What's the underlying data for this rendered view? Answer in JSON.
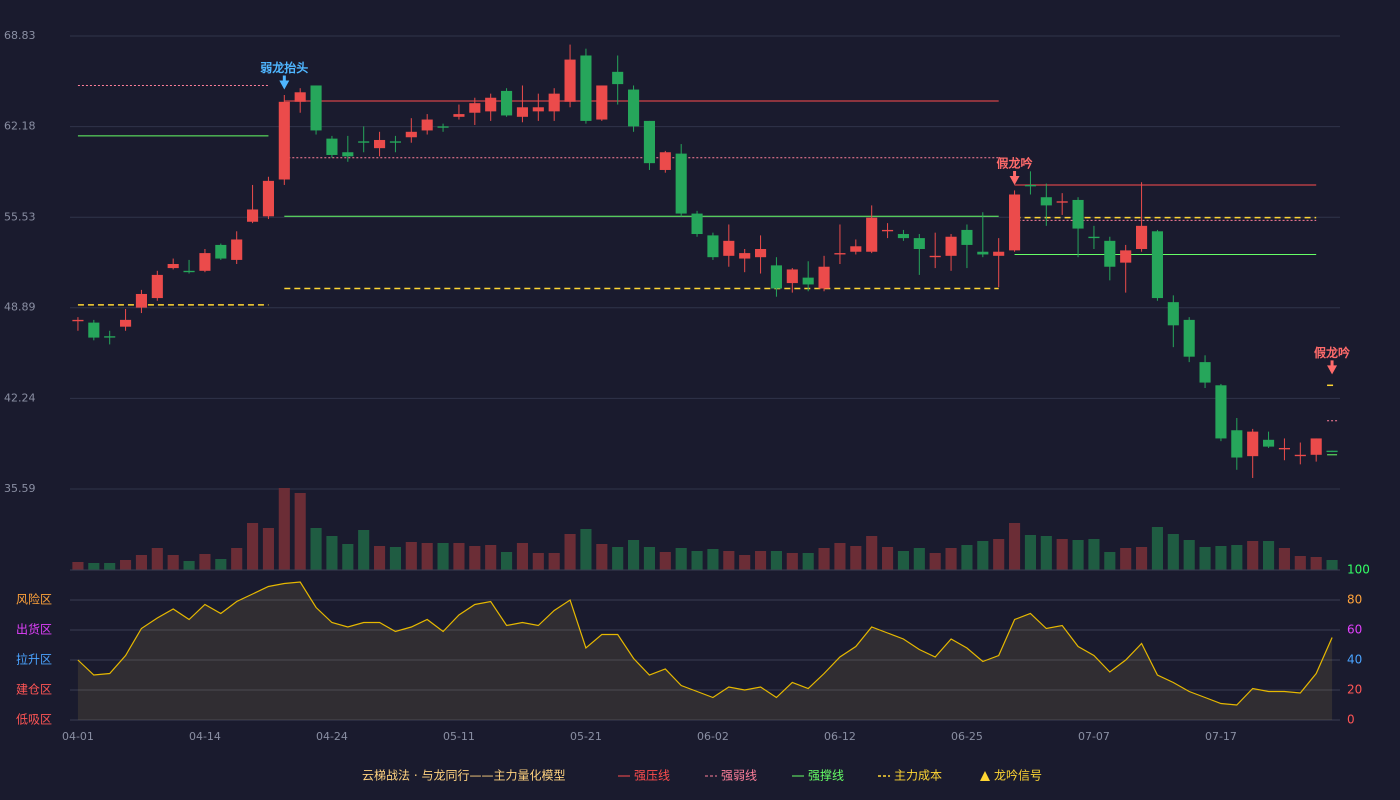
{
  "chart_data": [
    {
      "type": "candlestick",
      "legend_title": "云梯战法 · 与龙同行——主力量化模型",
      "categories": [
        "04-01",
        null,
        null,
        null,
        null,
        null,
        null,
        null,
        "04-14",
        null,
        null,
        null,
        null,
        null,
        null,
        null,
        "04-24",
        null,
        null,
        null,
        null,
        null,
        null,
        null,
        "05-11",
        null,
        null,
        null,
        null,
        null,
        null,
        null,
        "05-21",
        null,
        null,
        null,
        null,
        null,
        null,
        null,
        "06-02",
        null,
        null,
        null,
        null,
        null,
        null,
        null,
        "06-12",
        null,
        null,
        null,
        null,
        null,
        null,
        null,
        "06-25",
        null,
        null,
        null,
        null,
        null,
        null,
        null,
        "07-07",
        null,
        null,
        null,
        null,
        null,
        null,
        null,
        "07-17",
        null,
        null,
        null,
        null,
        null,
        null,
        null
      ],
      "open": [
        47.9,
        47.8,
        46.8,
        47.5,
        48.9,
        49.6,
        51.8,
        51.6,
        51.6,
        53.5,
        52.4,
        55.2,
        55.6,
        58.3,
        64.0,
        65.2,
        61.3,
        60.3,
        61.1,
        60.6,
        61.1,
        61.4,
        61.9,
        62.2,
        62.9,
        63.2,
        63.3,
        64.8,
        62.9,
        63.3,
        63.3,
        64.0,
        67.4,
        62.7,
        66.2,
        64.9,
        62.6,
        59.0,
        60.2,
        55.8,
        54.2,
        52.7,
        52.5,
        52.6,
        52.0,
        50.7,
        51.1,
        50.3,
        52.8,
        53.0,
        53.0,
        54.5,
        54.3,
        54.0,
        52.6,
        52.7,
        54.6,
        53.0,
        52.7,
        53.1,
        57.9,
        57.0,
        56.6,
        56.8,
        54.1,
        53.8,
        52.2,
        53.2,
        54.5,
        49.3,
        48.0,
        44.9,
        43.2,
        39.9,
        38.0,
        39.2,
        38.5,
        38.0,
        38.1,
        38.4
      ],
      "high": [
        48.2,
        48.0,
        47.2,
        48.8,
        50.2,
        51.6,
        52.5,
        52.4,
        53.2,
        53.6,
        54.5,
        57.9,
        58.5,
        64.5,
        65.0,
        65.2,
        61.5,
        61.5,
        62.2,
        61.8,
        61.5,
        62.8,
        63.1,
        62.4,
        63.8,
        64.3,
        64.6,
        65.0,
        65.2,
        64.6,
        65.0,
        68.2,
        67.9,
        65.2,
        67.4,
        65.2,
        62.6,
        60.4,
        60.9,
        56.0,
        54.4,
        55.0,
        53.2,
        54.2,
        52.6,
        51.8,
        52.3,
        52.7,
        55.0,
        53.9,
        56.4,
        55.1,
        54.6,
        54.3,
        54.4,
        54.3,
        55.0,
        55.9,
        54.0,
        57.5,
        58.9,
        58.0,
        57.3,
        57.0,
        54.9,
        54.1,
        53.5,
        58.1,
        54.6,
        49.8,
        48.2,
        45.4,
        43.3,
        40.8,
        40.0,
        39.8,
        39.3,
        39.0,
        39.3,
        38.4
      ],
      "low": [
        47.2,
        46.5,
        46.2,
        47.2,
        48.5,
        49.4,
        51.7,
        51.4,
        51.5,
        52.4,
        52.1,
        55.1,
        55.4,
        57.9,
        63.2,
        61.6,
        59.9,
        59.6,
        60.3,
        60.0,
        60.3,
        61.0,
        61.6,
        61.8,
        62.7,
        62.3,
        62.6,
        62.9,
        62.5,
        62.6,
        62.6,
        63.6,
        62.4,
        62.6,
        63.8,
        61.8,
        59.0,
        58.8,
        55.6,
        54.1,
        52.4,
        51.9,
        51.5,
        51.4,
        49.7,
        50.0,
        50.1,
        50.1,
        52.1,
        52.8,
        52.9,
        54.0,
        53.8,
        51.3,
        51.8,
        51.6,
        51.8,
        52.6,
        50.4,
        53.0,
        57.2,
        54.9,
        55.7,
        52.6,
        53.2,
        50.9,
        50.0,
        53.0,
        49.4,
        46.0,
        44.9,
        43.0,
        39.1,
        37.0,
        36.4,
        38.6,
        37.7,
        37.4,
        37.6,
        38.3
      ],
      "close": [
        48.0,
        46.7,
        46.7,
        48.0,
        49.9,
        51.3,
        52.1,
        51.5,
        52.9,
        52.5,
        53.9,
        56.1,
        58.2,
        64.0,
        64.7,
        61.9,
        60.1,
        60.0,
        61.0,
        61.2,
        61.0,
        61.8,
        62.7,
        62.1,
        63.1,
        63.9,
        64.3,
        63.0,
        63.6,
        63.6,
        64.6,
        67.1,
        62.6,
        65.2,
        65.3,
        62.2,
        59.5,
        60.3,
        55.8,
        54.3,
        52.6,
        53.8,
        52.9,
        53.2,
        50.3,
        51.7,
        50.6,
        51.9,
        52.9,
        53.4,
        55.5,
        54.6,
        54.0,
        53.2,
        52.7,
        54.1,
        53.5,
        52.8,
        53.0,
        57.2,
        57.8,
        56.4,
        56.7,
        54.7,
        54.0,
        51.9,
        53.1,
        54.9,
        49.6,
        47.6,
        45.3,
        43.4,
        39.3,
        37.9,
        39.8,
        38.7,
        38.6,
        38.1,
        39.3,
        38.3
      ],
      "up_color": "#eb4b4b",
      "down_color": "#26a65b",
      "ylim": [
        35.59,
        68.83
      ],
      "yticks": [
        68.83,
        62.18,
        55.53,
        48.89,
        42.24,
        35.59
      ],
      "grid": true,
      "levels": [
        {
          "kind": "weak",
          "value": 65.2,
          "start": 0,
          "end": 12
        },
        {
          "kind": "support",
          "value": 61.5,
          "start": 0,
          "end": 12
        },
        {
          "kind": "cost",
          "value": 49.1,
          "start": 0,
          "end": 12
        },
        {
          "kind": "strong",
          "value": 64.06,
          "start": 13,
          "end": 58
        },
        {
          "kind": "weak",
          "value": 59.9,
          "start": 13,
          "end": 58
        },
        {
          "kind": "support",
          "value": 55.6,
          "start": 13,
          "end": 58
        },
        {
          "kind": "cost",
          "value": 50.3,
          "start": 13,
          "end": 58
        },
        {
          "kind": "strong",
          "value": 57.9,
          "start": 59,
          "end": 78
        },
        {
          "kind": "cost",
          "value": 55.5,
          "start": 59,
          "end": 78
        },
        {
          "kind": "weak",
          "value": 55.3,
          "start": 59,
          "end": 78
        },
        {
          "kind": "support",
          "value": 52.8,
          "start": 59,
          "end": 78
        },
        {
          "kind": "cost",
          "value": 43.2,
          "start": 79,
          "end": 79
        },
        {
          "kind": "weak",
          "value": 40.6,
          "start": 79,
          "end": 79
        },
        {
          "kind": "support",
          "value": 38.1,
          "start": 79,
          "end": 79
        }
      ],
      "signals": [
        {
          "label": "弱龙抬头",
          "index": 13,
          "value": 64.9,
          "color": "#4fb6ff"
        },
        {
          "label": "假龙吟",
          "index": 59,
          "value": 57.9,
          "color": "#ff6b6b"
        },
        {
          "label": "假龙吟",
          "index": 79,
          "value": 44.0,
          "color": "#ff6b6b"
        }
      ],
      "legend": [
        {
          "name": "强压线",
          "kind": "strong",
          "color": "#ff4d4d"
        },
        {
          "name": "强弱线",
          "kind": "weak",
          "color": "#ff7f9a"
        },
        {
          "name": "强撑线",
          "kind": "support",
          "color": "#66ff66"
        },
        {
          "name": "主力成本",
          "kind": "cost",
          "color": "#ffd633"
        },
        {
          "name": "龙吟信号",
          "kind": "signal",
          "color": "#ffd633"
        }
      ],
      "legend_title_color": "#ffd27f"
    },
    {
      "type": "bar",
      "values": [
        8,
        7,
        7,
        10,
        15,
        22,
        15,
        9,
        16,
        11,
        22,
        47,
        42,
        82,
        77,
        42,
        34,
        26,
        40,
        24,
        23,
        28,
        27,
        27,
        27,
        24,
        25,
        18,
        27,
        17,
        17,
        36,
        41,
        26,
        23,
        30,
        23,
        18,
        22,
        19,
        21,
        19,
        15,
        19,
        19,
        17,
        17,
        22,
        27,
        24,
        34,
        23,
        19,
        22,
        17,
        22,
        25,
        29,
        31,
        47,
        35,
        34,
        31,
        30,
        31,
        18,
        22,
        23,
        43,
        36,
        30,
        23,
        24,
        25,
        29,
        29,
        22,
        14,
        13,
        10
      ],
      "up_color": "#6b2d36",
      "down_color": "#1f5c42",
      "ylim": [
        0,
        82
      ]
    },
    {
      "type": "area",
      "values": [
        40,
        30,
        31,
        43,
        61,
        68,
        74,
        67,
        77,
        71,
        79,
        84,
        89,
        91,
        92,
        75,
        65,
        62,
        65,
        65,
        59,
        62,
        67,
        59,
        70,
        77,
        79,
        63,
        65,
        63,
        73,
        80,
        48,
        57,
        57,
        41,
        30,
        34,
        23,
        19,
        15,
        22,
        20,
        22,
        15,
        25,
        21,
        31,
        42,
        49,
        62,
        58,
        54,
        47,
        42,
        54,
        48,
        39,
        43,
        67,
        71,
        61,
        63,
        49,
        43,
        32,
        40,
        51,
        30,
        25,
        19,
        15,
        11,
        10,
        21,
        19,
        19,
        18,
        31,
        55
      ],
      "color": "#e6b800",
      "ylim": [
        0,
        100
      ],
      "yticks": [
        0,
        20,
        40,
        60,
        80,
        100
      ],
      "ytick_colors": [
        "#ff5555",
        "#ff5555",
        "#4aa3ff",
        "#e040fb",
        "#ffa23a",
        "#33ff66"
      ],
      "zones": [
        {
          "label": "风险区",
          "value": 80,
          "color": "#ffa23a"
        },
        {
          "label": "出货区",
          "value": 60,
          "color": "#e040fb"
        },
        {
          "label": "拉升区",
          "value": 40,
          "color": "#4aa3ff"
        },
        {
          "label": "建仓区",
          "value": 20,
          "color": "#ff5555"
        },
        {
          "label": "低吸区",
          "value": 0,
          "color": "#ff5555"
        }
      ]
    }
  ]
}
